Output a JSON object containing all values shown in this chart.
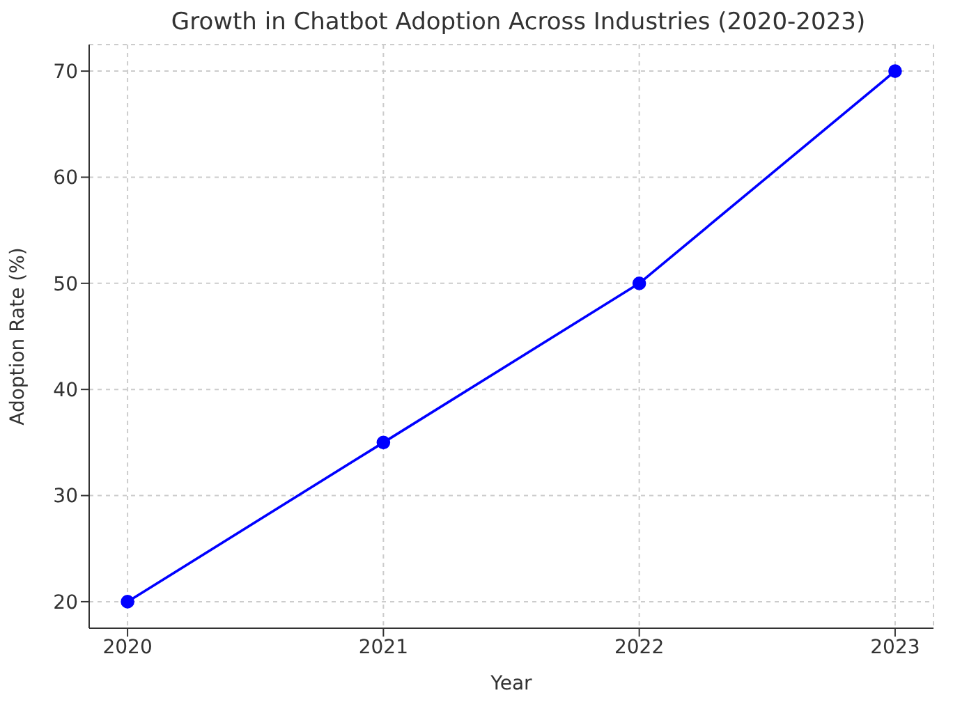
{
  "chart_data": {
    "type": "line",
    "title": "Growth in Chatbot Adoption Across Industries (2020-2023)",
    "xlabel": "Year",
    "ylabel": "Adoption Rate (%)",
    "x": [
      2020,
      2021,
      2022,
      2023
    ],
    "series": [
      {
        "color": "#0000ff",
        "values": [
          20,
          35,
          50,
          70
        ]
      }
    ],
    "xlim": [
      2019.85,
      2023.15
    ],
    "xticks": [
      2020,
      2021,
      2022,
      2023
    ],
    "ylim": [
      17.5,
      72.5
    ],
    "yticks": [
      20,
      30,
      40,
      50,
      60,
      70
    ],
    "grid": true,
    "marker": "circle",
    "line_style": "solid"
  }
}
